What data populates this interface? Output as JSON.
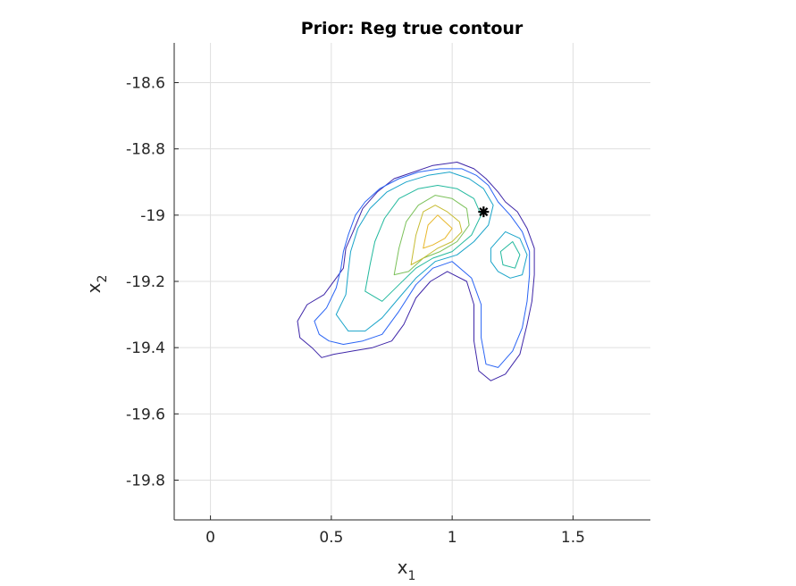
{
  "chart_data": {
    "type": "contour",
    "title": "Prior: Reg true contour",
    "xlabel": "x",
    "xlabel_sub": "1",
    "ylabel": "x",
    "ylabel_sub": "2",
    "xlim": [
      -0.15,
      1.82
    ],
    "ylim": [
      -19.92,
      -18.48
    ],
    "xticks": [
      0,
      0.5,
      1,
      1.5
    ],
    "xtick_labels": [
      "0",
      "0.5",
      "1",
      "1.5"
    ],
    "yticks": [
      -19.8,
      -19.6,
      -19.4,
      -19.2,
      -19.0,
      -18.8,
      -18.6
    ],
    "ytick_labels": [
      "-19.8",
      "-19.6",
      "-19.4",
      "-19.2",
      "-19",
      "-18.8",
      "-18.6"
    ],
    "grid": true,
    "colormap": [
      "#3e26a8",
      "#2a64f4",
      "#1aa4c9",
      "#23b99e",
      "#7cc15a",
      "#c7bc33",
      "#e8b82c"
    ],
    "levels": [
      {
        "level": 1,
        "color": "#3e26a8",
        "points": [
          [
            0.36,
            -19.32
          ],
          [
            0.4,
            -19.27
          ],
          [
            0.47,
            -19.24
          ],
          [
            0.52,
            -19.19
          ],
          [
            0.55,
            -19.16
          ],
          [
            0.56,
            -19.1
          ],
          [
            0.59,
            -19.05
          ],
          [
            0.63,
            -18.98
          ],
          [
            0.69,
            -18.93
          ],
          [
            0.76,
            -18.89
          ],
          [
            0.84,
            -18.87
          ],
          [
            0.92,
            -18.85
          ],
          [
            1.02,
            -18.84
          ],
          [
            1.09,
            -18.86
          ],
          [
            1.14,
            -18.89
          ],
          [
            1.19,
            -18.93
          ],
          [
            1.22,
            -18.96
          ],
          [
            1.27,
            -18.99
          ],
          [
            1.31,
            -19.04
          ],
          [
            1.34,
            -19.1
          ],
          [
            1.34,
            -19.18
          ],
          [
            1.33,
            -19.26
          ],
          [
            1.31,
            -19.33
          ],
          [
            1.28,
            -19.42
          ],
          [
            1.22,
            -19.48
          ],
          [
            1.16,
            -19.5
          ],
          [
            1.11,
            -19.47
          ],
          [
            1.09,
            -19.38
          ],
          [
            1.09,
            -19.27
          ],
          [
            1.06,
            -19.2
          ],
          [
            0.98,
            -19.17
          ],
          [
            0.91,
            -19.2
          ],
          [
            0.85,
            -19.25
          ],
          [
            0.8,
            -19.33
          ],
          [
            0.75,
            -19.38
          ],
          [
            0.67,
            -19.4
          ],
          [
            0.59,
            -19.41
          ],
          [
            0.51,
            -19.42
          ],
          [
            0.46,
            -19.43
          ],
          [
            0.42,
            -19.4
          ],
          [
            0.37,
            -19.37
          ]
        ]
      },
      {
        "level": 2,
        "color": "#2a64f4",
        "points": [
          [
            0.43,
            -19.32
          ],
          [
            0.48,
            -19.28
          ],
          [
            0.52,
            -19.22
          ],
          [
            0.54,
            -19.16
          ],
          [
            0.55,
            -19.11
          ],
          [
            0.57,
            -19.06
          ],
          [
            0.6,
            -19.0
          ],
          [
            0.64,
            -18.96
          ],
          [
            0.7,
            -18.92
          ],
          [
            0.78,
            -18.89
          ],
          [
            0.86,
            -18.87
          ],
          [
            0.95,
            -18.86
          ],
          [
            1.04,
            -18.86
          ],
          [
            1.1,
            -18.88
          ],
          [
            1.15,
            -18.91
          ],
          [
            1.19,
            -18.96
          ],
          [
            1.24,
            -19.0
          ],
          [
            1.29,
            -19.05
          ],
          [
            1.32,
            -19.11
          ],
          [
            1.32,
            -19.18
          ],
          [
            1.31,
            -19.26
          ],
          [
            1.29,
            -19.34
          ],
          [
            1.25,
            -19.41
          ],
          [
            1.19,
            -19.46
          ],
          [
            1.14,
            -19.45
          ],
          [
            1.12,
            -19.37
          ],
          [
            1.12,
            -19.27
          ],
          [
            1.08,
            -19.19
          ],
          [
            1.0,
            -19.14
          ],
          [
            0.92,
            -19.16
          ],
          [
            0.85,
            -19.21
          ],
          [
            0.78,
            -19.29
          ],
          [
            0.71,
            -19.36
          ],
          [
            0.63,
            -19.38
          ],
          [
            0.55,
            -19.39
          ],
          [
            0.49,
            -19.38
          ],
          [
            0.45,
            -19.36
          ]
        ]
      },
      {
        "level": 3,
        "color": "#1aa4c9",
        "points": [
          [
            0.52,
            -19.3
          ],
          [
            0.56,
            -19.24
          ],
          [
            0.57,
            -19.17
          ],
          [
            0.58,
            -19.11
          ],
          [
            0.61,
            -19.04
          ],
          [
            0.66,
            -18.98
          ],
          [
            0.73,
            -18.93
          ],
          [
            0.81,
            -18.9
          ],
          [
            0.9,
            -18.88
          ],
          [
            0.99,
            -18.87
          ],
          [
            1.07,
            -18.89
          ],
          [
            1.13,
            -18.92
          ],
          [
            1.17,
            -18.97
          ],
          [
            1.15,
            -19.03
          ],
          [
            1.09,
            -19.08
          ],
          [
            1.02,
            -19.12
          ],
          [
            0.93,
            -19.14
          ],
          [
            0.85,
            -19.19
          ],
          [
            0.78,
            -19.25
          ],
          [
            0.71,
            -19.31
          ],
          [
            0.64,
            -19.35
          ],
          [
            0.57,
            -19.35
          ]
        ]
      },
      {
        "level": 4,
        "color": "#23b99e",
        "points": [
          [
            0.64,
            -19.23
          ],
          [
            0.66,
            -19.15
          ],
          [
            0.68,
            -19.08
          ],
          [
            0.72,
            -19.01
          ],
          [
            0.78,
            -18.95
          ],
          [
            0.86,
            -18.92
          ],
          [
            0.94,
            -18.91
          ],
          [
            1.02,
            -18.92
          ],
          [
            1.09,
            -18.95
          ],
          [
            1.12,
            -19.0
          ],
          [
            1.08,
            -19.06
          ],
          [
            1.0,
            -19.11
          ],
          [
            0.92,
            -19.13
          ],
          [
            0.85,
            -19.16
          ],
          [
            0.78,
            -19.21
          ],
          [
            0.71,
            -19.26
          ]
        ]
      },
      {
        "level": 5,
        "color": "#7cc15a",
        "points": [
          [
            0.76,
            -19.18
          ],
          [
            0.78,
            -19.1
          ],
          [
            0.81,
            -19.02
          ],
          [
            0.86,
            -18.97
          ],
          [
            0.93,
            -18.94
          ],
          [
            1.0,
            -18.95
          ],
          [
            1.06,
            -18.98
          ],
          [
            1.07,
            -19.03
          ],
          [
            1.02,
            -19.08
          ],
          [
            0.95,
            -19.11
          ],
          [
            0.88,
            -19.13
          ],
          [
            0.82,
            -19.17
          ]
        ]
      },
      {
        "level": 6,
        "color": "#c7bc33",
        "points": [
          [
            0.83,
            -19.15
          ],
          [
            0.85,
            -19.06
          ],
          [
            0.88,
            -18.99
          ],
          [
            0.93,
            -18.97
          ],
          [
            0.98,
            -18.99
          ],
          [
            1.03,
            -19.02
          ],
          [
            1.04,
            -19.05
          ],
          [
            1.0,
            -19.08
          ],
          [
            0.94,
            -19.1
          ],
          [
            0.88,
            -19.13
          ]
        ]
      },
      {
        "level": 7,
        "color": "#e8b82c",
        "points": [
          [
            0.88,
            -19.1
          ],
          [
            0.9,
            -19.03
          ],
          [
            0.94,
            -19.0
          ],
          [
            0.97,
            -19.02
          ],
          [
            1.0,
            -19.04
          ],
          [
            0.97,
            -19.07
          ],
          [
            0.92,
            -19.09
          ]
        ]
      },
      {
        "level": 3,
        "color": "#1aa4c9",
        "points": [
          [
            1.16,
            -19.1
          ],
          [
            1.22,
            -19.05
          ],
          [
            1.28,
            -19.07
          ],
          [
            1.31,
            -19.12
          ],
          [
            1.29,
            -19.18
          ],
          [
            1.24,
            -19.19
          ],
          [
            1.19,
            -19.17
          ],
          [
            1.16,
            -19.14
          ]
        ]
      },
      {
        "level": 4,
        "color": "#23b99e",
        "points": [
          [
            1.2,
            -19.11
          ],
          [
            1.25,
            -19.08
          ],
          [
            1.28,
            -19.12
          ],
          [
            1.26,
            -19.16
          ],
          [
            1.21,
            -19.15
          ]
        ]
      }
    ],
    "marker": {
      "x": 1.13,
      "y": -18.99,
      "symbol": "*",
      "color": "#000000"
    }
  }
}
